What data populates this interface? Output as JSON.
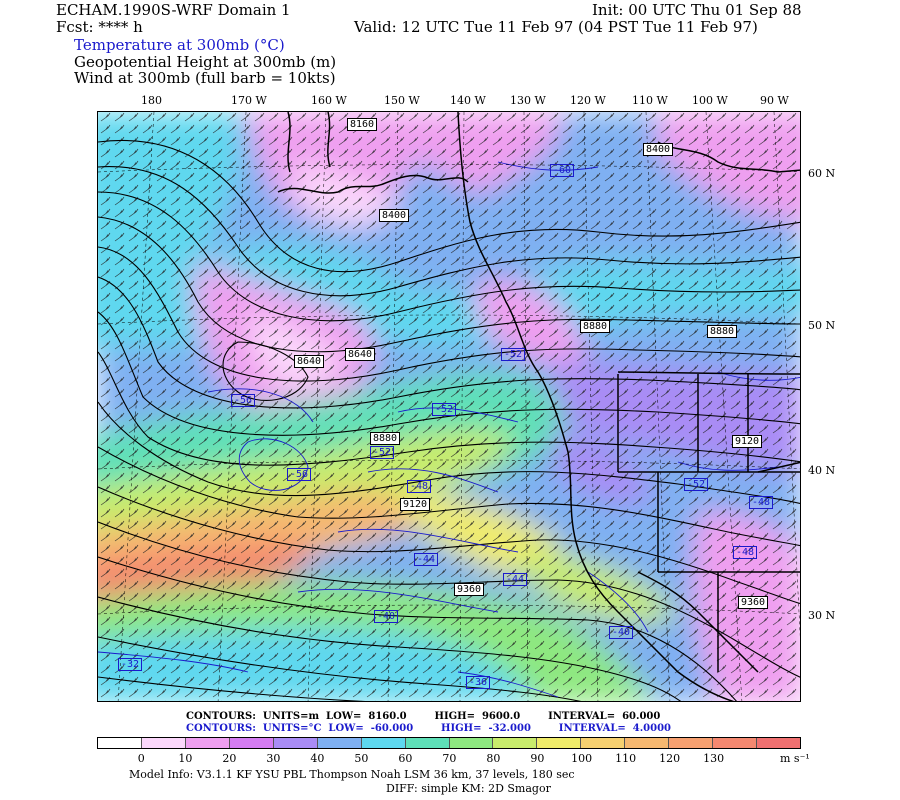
{
  "header": {
    "model_title": "ECHAM.1990S-WRF Domain 1",
    "forecast": "Fcst: **** h",
    "field_temperature": "Temperature at 300mb (°C)",
    "field_height": "Geopotential Height at 300mb (m)",
    "field_wind": "Wind at 300mb (full barb = 10kts)",
    "init": "Init: 00 UTC Thu 01 Sep 88",
    "valid": "Valid: 12 UTC Tue 11 Feb 97 (04 PST Tue 11 Feb 97)"
  },
  "axes": {
    "lon_labels": [
      "180",
      "170 W",
      "160 W",
      "150 W",
      "140 W",
      "130 W",
      "120 W",
      "110 W",
      "100 W",
      "90 W"
    ],
    "lat_labels": [
      "60 N",
      "50 N",
      "40 N",
      "30 N"
    ]
  },
  "map": {
    "height_labels": [
      "8160",
      "8400",
      "8400",
      "8880",
      "8880",
      "8640",
      "8640",
      "8880",
      "9120",
      "9120",
      "9360",
      "9360"
    ],
    "temp_labels": [
      "-60",
      "-52",
      "-56",
      "-52",
      "-56",
      "-52",
      "-48",
      "-52",
      "-48",
      "-48",
      "-44",
      "-44",
      "-40",
      "-40",
      "-32",
      "-36"
    ],
    "colors": {
      "land_outline": "#000000",
      "height_contour": "#000000",
      "temp_contour": "#1a1acc"
    }
  },
  "contour_info": {
    "line1_label": "CONTOURS:",
    "line1_units": "UNITS=m",
    "line1_low": "LOW=",
    "line1_low_val": "8160.0",
    "line1_high": "HIGH=",
    "line1_high_val": "9600.0",
    "line1_interval": "INTERVAL=",
    "line1_interval_val": "60.000",
    "line2_label": "CONTOURS:",
    "line2_units": "UNITS=°C",
    "line2_low": "LOW=",
    "line2_low_val": "-60.000",
    "line2_high": "HIGH=",
    "line2_high_val": "-32.000",
    "line2_interval": "INTERVAL=",
    "line2_interval_val": "4.0000"
  },
  "colorbar": {
    "labels": [
      "0",
      "10",
      "20",
      "30",
      "40",
      "50",
      "60",
      "70",
      "80",
      "90",
      "100",
      "110",
      "120",
      "130"
    ],
    "unit": "m s⁻¹",
    "colors": [
      "#ffffff",
      "#fbd7fb",
      "#ef9ff0",
      "#d47cf2",
      "#a98cf5",
      "#7fb0f2",
      "#5ed8ef",
      "#5ee0b8",
      "#8ee880",
      "#c8ec6c",
      "#f0ec6a",
      "#f6d070",
      "#f6b870",
      "#f6a070",
      "#f48870",
      "#f07070"
    ]
  },
  "footer": {
    "model_info": "Model Info: V3.1.1    KF      YSU PBL   Thompson      Noah LSM   36 km,    37 levels,   180 sec",
    "diff": "DIFF: simple KM: 2D Smagor"
  }
}
